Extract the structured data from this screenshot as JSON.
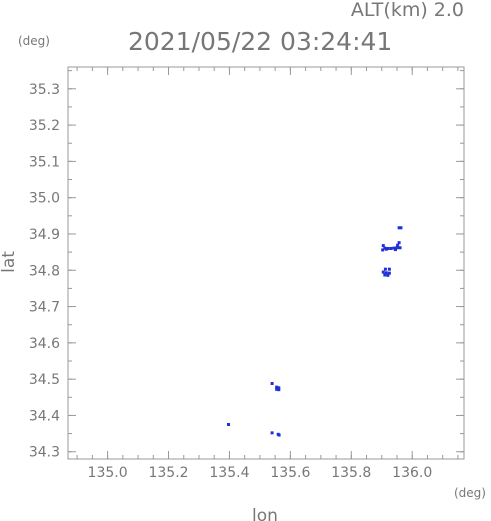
{
  "header": {
    "altitude": "ALT(km) 2.0",
    "timestamp": "2021/05/22 03:24:41"
  },
  "chart_data": {
    "type": "scatter",
    "xlabel": "lon",
    "ylabel": "lat",
    "xunit": "(deg)",
    "yunit": "(deg)",
    "xlim": [
      134.87,
      136.17
    ],
    "ylim": [
      34.28,
      35.36
    ],
    "xticks": [
      "135.0",
      "135.2",
      "135.4",
      "135.6",
      "135.8",
      "136.0"
    ],
    "yticks": [
      "34.3",
      "34.4",
      "34.5",
      "34.6",
      "34.7",
      "34.8",
      "34.9",
      "35.0",
      "35.1",
      "35.2",
      "35.3"
    ],
    "grid": false,
    "colors": {
      "points": "#2030d8",
      "axes": "#999999",
      "text": "#777777"
    },
    "points": [
      {
        "x": 135.963,
        "y": 34.917
      },
      {
        "x": 135.957,
        "y": 34.917
      },
      {
        "x": 135.957,
        "y": 34.876
      },
      {
        "x": 135.952,
        "y": 34.869
      },
      {
        "x": 135.905,
        "y": 34.868
      },
      {
        "x": 135.91,
        "y": 34.861
      },
      {
        "x": 135.92,
        "y": 34.86
      },
      {
        "x": 135.93,
        "y": 34.86
      },
      {
        "x": 135.94,
        "y": 34.861
      },
      {
        "x": 135.95,
        "y": 34.862
      },
      {
        "x": 135.96,
        "y": 34.862
      },
      {
        "x": 135.903,
        "y": 34.856
      },
      {
        "x": 135.915,
        "y": 34.858
      },
      {
        "x": 135.945,
        "y": 34.857
      },
      {
        "x": 135.912,
        "y": 34.803
      },
      {
        "x": 135.925,
        "y": 34.803
      },
      {
        "x": 135.905,
        "y": 34.795
      },
      {
        "x": 135.915,
        "y": 34.793
      },
      {
        "x": 135.925,
        "y": 34.792
      },
      {
        "x": 135.91,
        "y": 34.787
      },
      {
        "x": 135.92,
        "y": 34.786
      },
      {
        "x": 135.54,
        "y": 34.488
      },
      {
        "x": 135.555,
        "y": 34.478
      },
      {
        "x": 135.562,
        "y": 34.476
      },
      {
        "x": 135.555,
        "y": 34.472
      },
      {
        "x": 135.562,
        "y": 34.471
      },
      {
        "x": 135.397,
        "y": 34.375
      },
      {
        "x": 135.54,
        "y": 34.352
      },
      {
        "x": 135.56,
        "y": 34.348
      },
      {
        "x": 135.563,
        "y": 34.346
      }
    ]
  }
}
